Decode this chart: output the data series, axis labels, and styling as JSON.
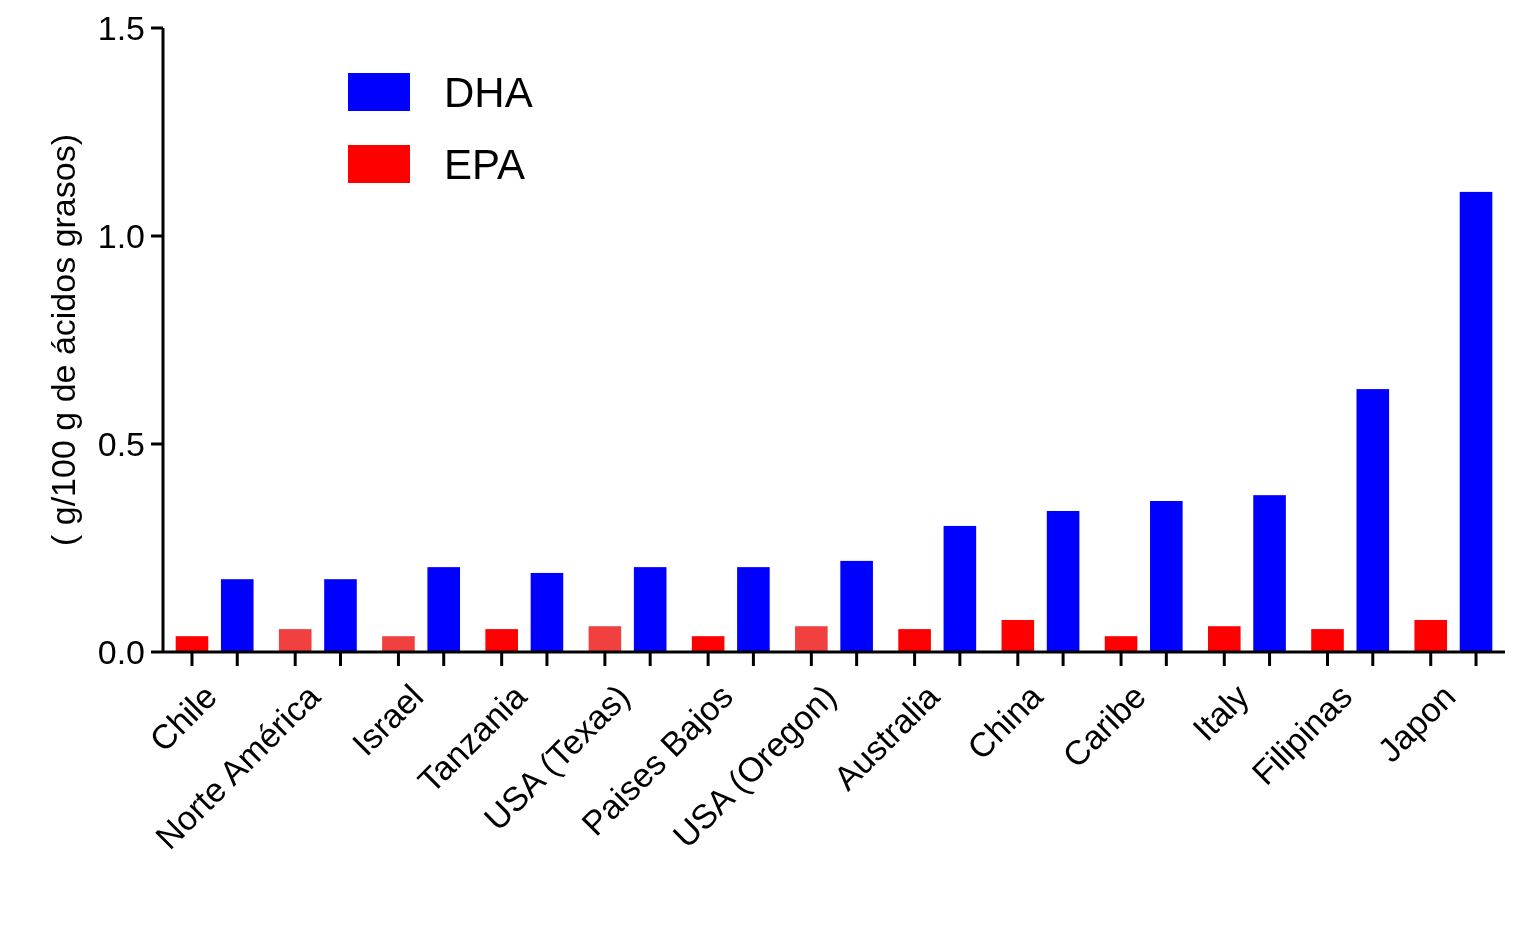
{
  "chart_data": {
    "type": "bar",
    "ylabel": "( g/100 g de ácidos grasos)",
    "categories": [
      "Chile",
      "Norte América",
      "Israel",
      "Tanzania",
      "USA (Texas)",
      "Paises Bajos",
      "USA (Oregon)",
      "Australia",
      "China",
      "Caribe",
      "Italy",
      "Filipinas",
      "Japon"
    ],
    "series": [
      {
        "name": "EPA",
        "color": "#ff0000",
        "colors": [
          "#ff0000",
          "#f04040",
          "#f04040",
          "#ff0000",
          "#f04040",
          "#ff0000",
          "#f04040",
          "#ff0000",
          "#ff0000",
          "#ff0000",
          "#ff0000",
          "#ff0000",
          "#ff0000"
        ],
        "values": [
          0.038,
          0.055,
          0.038,
          0.055,
          0.062,
          0.038,
          0.062,
          0.055,
          0.077,
          0.038,
          0.062,
          0.055,
          0.077
        ]
      },
      {
        "name": "DHA",
        "color": "#0000ff",
        "values": [
          0.175,
          0.175,
          0.204,
          0.19,
          0.204,
          0.204,
          0.219,
          0.303,
          0.339,
          0.363,
          0.377,
          0.632,
          1.106
        ]
      }
    ],
    "ylim": [
      0,
      1.5
    ],
    "yticks": [
      {
        "value": 0,
        "label": "0.0"
      },
      {
        "value": 0.5,
        "label": "0.5"
      },
      {
        "value": 1,
        "label": "1.0"
      },
      {
        "value": 1.5,
        "label": "1.5"
      }
    ],
    "legend": "top left",
    "grid": false
  }
}
